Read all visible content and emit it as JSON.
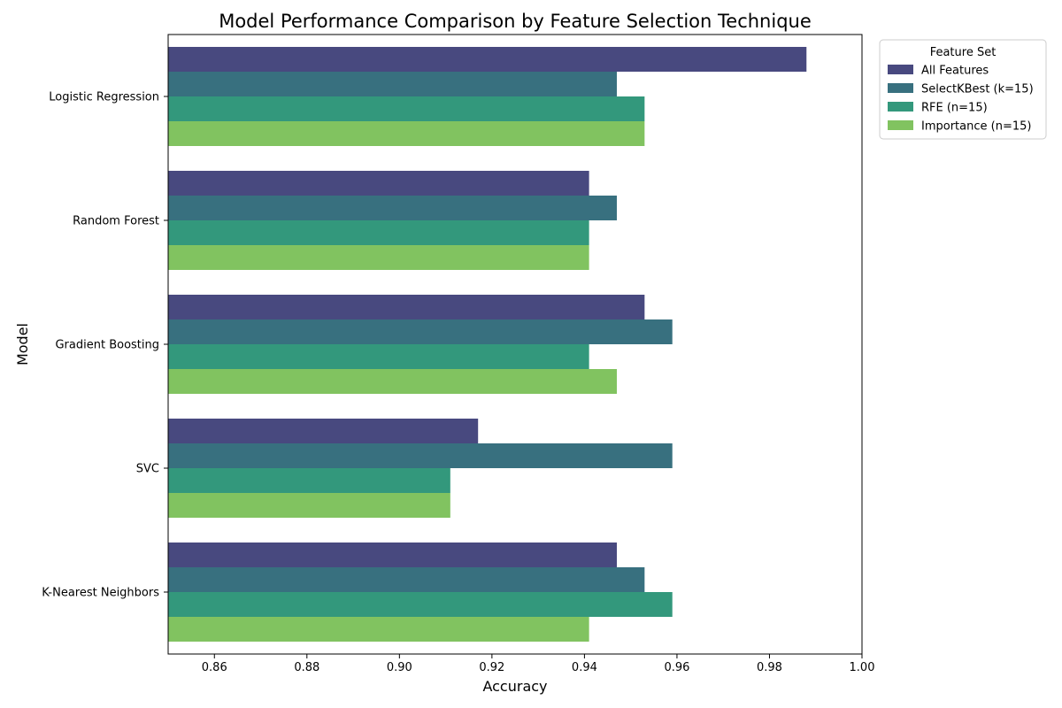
{
  "chart_data": {
    "type": "bar",
    "orientation": "horizontal",
    "title": "Model Performance Comparison by Feature Selection Technique",
    "xlabel": "Accuracy",
    "ylabel": "Model",
    "xlim": [
      0.85,
      1.0
    ],
    "xticks": [
      "0.86",
      "0.88",
      "0.90",
      "0.92",
      "0.94",
      "0.96",
      "0.98",
      "1.00"
    ],
    "xtick_values": [
      0.86,
      0.88,
      0.9,
      0.92,
      0.94,
      0.96,
      0.98,
      1.0
    ],
    "grid": false,
    "legend_title": "Feature Set",
    "legend_position": "outside top-right",
    "categories": [
      "Logistic Regression",
      "Random Forest",
      "Gradient Boosting",
      "SVC",
      "K-Nearest Neighbors"
    ],
    "series": [
      {
        "name": "All Features",
        "color": "#48497f",
        "values": [
          0.988,
          0.941,
          0.953,
          0.917,
          0.947
        ]
      },
      {
        "name": "SelectKBest (k=15)",
        "color": "#38707f",
        "values": [
          0.947,
          0.947,
          0.959,
          0.959,
          0.953
        ]
      },
      {
        "name": "RFE (n=15)",
        "color": "#33987c",
        "values": [
          0.953,
          0.941,
          0.941,
          0.911,
          0.959
        ]
      },
      {
        "name": "Importance (n=15)",
        "color": "#81c360",
        "values": [
          0.953,
          0.941,
          0.947,
          0.911,
          0.941
        ]
      }
    ]
  }
}
